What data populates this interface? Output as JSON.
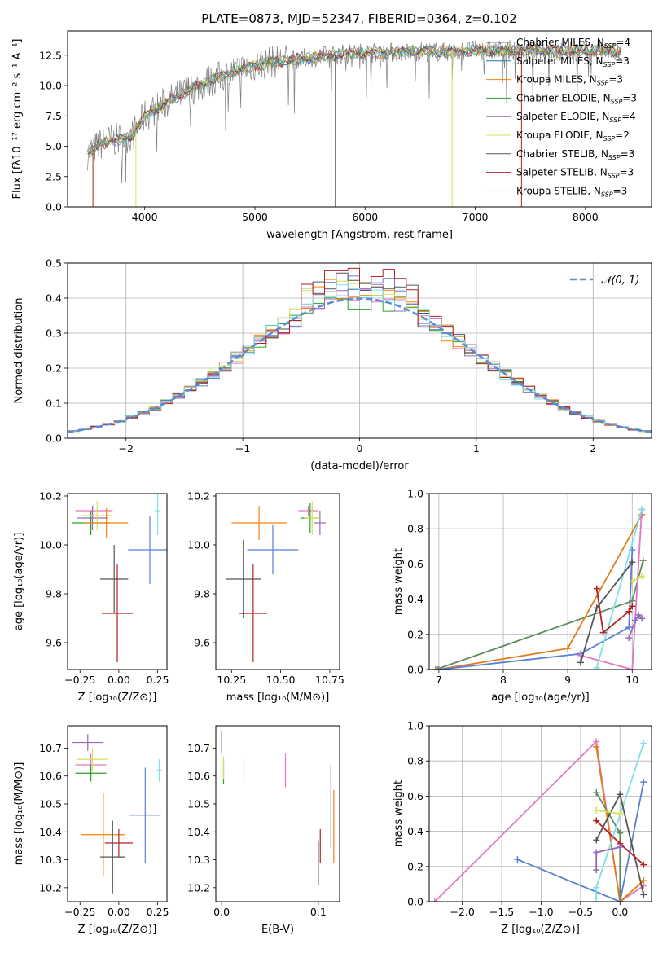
{
  "figure_title": "PLATE=0873, MJD=52347, FIBERID=0364, z=0.102",
  "model_colors": {
    "Chabrier MILES": "#7f7f7f",
    "Salpeter MILES": "#1f77b4",
    "Kroupa MILES": "#ff7f0e",
    "Chabrier ELODIE": "#2ca02c",
    "Salpeter ELODIE": "#9467bd",
    "Kroupa ELODIE": "#d4e157",
    "Chabrier STELIB": "#555555",
    "Salpeter STELIB": "#b22222",
    "Kroupa STELIB": "#7fdfe6",
    "pink": "#e377c2",
    "blue": "#5b7fd6",
    "green": "#5e8c5e",
    "orange": "#e07b1a"
  },
  "chart_data": [
    {
      "panel": "spectrum",
      "type": "line",
      "title": "PLATE=0873, MJD=52347, FIBERID=0364, z=0.102",
      "xlabel": "wavelength [Angstrom, rest frame]",
      "ylabel": "Flux [fλ10⁻¹⁷ erg cm⁻² s⁻¹ A⁻¹]",
      "xlim": [
        3300,
        8600
      ],
      "ylim": [
        0,
        14.5
      ],
      "xticks": [
        "4000",
        "5000",
        "6000",
        "7000",
        "8000"
      ],
      "yticks": [
        "0.0",
        "2.5",
        "5.0",
        "7.5",
        "10.0",
        "12.5"
      ],
      "legend_position": "upper right",
      "legend": [
        {
          "label": "Chabrier MILES, N",
          "sub": "SSP",
          "suffix": "=4",
          "color": "#7f7f7f"
        },
        {
          "label": "Salpeter MILES, N",
          "sub": "SSP",
          "suffix": "=3",
          "color": "#1f77b4"
        },
        {
          "label": "Kroupa MILES, N",
          "sub": "SSP",
          "suffix": "=3",
          "color": "#ff7f0e"
        },
        {
          "label": "Chabrier ELODIE, N",
          "sub": "SSP",
          "suffix": "=3",
          "color": "#2ca02c"
        },
        {
          "label": "Salpeter ELODIE, N",
          "sub": "SSP",
          "suffix": "=4",
          "color": "#9467bd"
        },
        {
          "label": "Kroupa ELODIE, N",
          "sub": "SSP",
          "suffix": "=2",
          "color": "#d4e157"
        },
        {
          "label": "Chabrier STELIB, N",
          "sub": "SSP",
          "suffix": "=3",
          "color": "#555555"
        },
        {
          "label": "Salpeter STELIB, N",
          "sub": "SSP",
          "suffix": "=3",
          "color": "#b22222"
        },
        {
          "label": "Kroupa STELIB, N",
          "sub": "SSP",
          "suffix": "=3",
          "color": "#7fdfe6"
        }
      ],
      "continuum": [
        [
          3480,
          4.4
        ],
        [
          3600,
          5.2
        ],
        [
          3700,
          5.5
        ],
        [
          3800,
          5.6
        ],
        [
          3900,
          6.0
        ],
        [
          4000,
          7.5
        ],
        [
          4200,
          8.6
        ],
        [
          4400,
          9.6
        ],
        [
          4600,
          10.4
        ],
        [
          4800,
          11.1
        ],
        [
          5000,
          11.7
        ],
        [
          5200,
          12.0
        ],
        [
          5400,
          12.2
        ],
        [
          5600,
          12.4
        ],
        [
          5800,
          12.6
        ],
        [
          6000,
          12.7
        ],
        [
          6200,
          12.7
        ],
        [
          6400,
          12.8
        ],
        [
          6600,
          12.8
        ],
        [
          6800,
          12.8
        ],
        [
          7000,
          12.9
        ],
        [
          7200,
          12.9
        ],
        [
          7400,
          12.9
        ],
        [
          7600,
          12.9
        ],
        [
          7800,
          12.8
        ],
        [
          8000,
          12.9
        ],
        [
          8200,
          12.8
        ],
        [
          8330,
          12.7
        ]
      ],
      "noise_amplitude": 1.4,
      "spike_lines": [
        {
          "x": 3530,
          "color": "#b22222"
        },
        {
          "x": 5730,
          "color": "#555555"
        },
        {
          "x": 6790,
          "color": "#d4e157"
        },
        {
          "x": 7420,
          "color": "#b22222"
        },
        {
          "x": 3920,
          "color": "#d4e157"
        }
      ]
    },
    {
      "panel": "residuals",
      "type": "histogram",
      "xlabel": "(data-model)/error",
      "ylabel": "Normed distribution",
      "xlim": [
        -2.5,
        2.5
      ],
      "ylim": [
        0,
        0.5
      ],
      "xticks": [
        "−2",
        "−1",
        "0",
        "1",
        "2"
      ],
      "yticks": [
        "0.0",
        "0.1",
        "0.2",
        "0.3",
        "0.4",
        "0.5"
      ],
      "grid": true,
      "legend_position": "upper right",
      "reference_curve": {
        "label": "𝒩(0, 1)",
        "color": "#5b8bd6",
        "style": "dashed"
      },
      "bin_width": 0.1,
      "series_colors": [
        "#5b7fd6",
        "#e377c2",
        "#2ca02c",
        "#ff7f0e",
        "#9467bd",
        "#d4e157",
        "#555555",
        "#b22222",
        "#7fdfe6"
      ],
      "series_tops": [
        0.46,
        0.42,
        0.41,
        0.45,
        0.43,
        0.46,
        0.47,
        0.48,
        0.43
      ]
    },
    {
      "panel": "age_vs_Z",
      "type": "errorbar",
      "xlabel": "Z [log₁₀(Z/Z⊙)]",
      "ylabel": "age  [log₁₀(age/yr)]",
      "xlim": [
        -0.33,
        0.31
      ],
      "ylim": [
        9.49,
        10.21
      ],
      "xticks": [
        "−0.25",
        "0.00",
        "0.25"
      ],
      "yticks": [
        "9.6",
        "9.8",
        "10.0",
        "10.2"
      ],
      "points": [
        {
          "x": -0.16,
          "y": 10.14,
          "xerr": 0.12,
          "yerr": 0.03,
          "color": "#e377c2"
        },
        {
          "x": -0.18,
          "y": 10.09,
          "xerr": 0.12,
          "yerr": 0.05,
          "color": "#2ca02c"
        },
        {
          "x": -0.17,
          "y": 10.11,
          "xerr": 0.1,
          "yerr": 0.05,
          "color": "#9467bd"
        },
        {
          "x": -0.14,
          "y": 10.12,
          "xerr": 0.1,
          "yerr": 0.06,
          "color": "#d4e157"
        },
        {
          "x": -0.08,
          "y": 10.09,
          "xerr": 0.14,
          "yerr": 0.06,
          "color": "#ff7f0e"
        },
        {
          "x": 0.2,
          "y": 9.98,
          "xerr": 0.14,
          "yerr": 0.14,
          "color": "#5b7fd6"
        },
        {
          "x": 0.25,
          "y": 10.14,
          "xerr": 0.02,
          "yerr": 0.1,
          "color": "#7fdfe6"
        },
        {
          "x": -0.03,
          "y": 9.86,
          "xerr": 0.09,
          "yerr": 0.14,
          "color": "#555555"
        },
        {
          "x": -0.01,
          "y": 9.72,
          "xerr": 0.1,
          "yerr": 0.2,
          "color": "#b22222"
        }
      ]
    },
    {
      "panel": "age_vs_mass",
      "type": "errorbar",
      "xlabel": "mass [log₁₀(M/M⊙)]",
      "xlim": [
        10.17,
        10.8
      ],
      "ylim": [
        9.49,
        10.21
      ],
      "xticks": [
        "10.25",
        "10.50",
        "10.75"
      ],
      "yticks": [
        "9.6",
        "9.8",
        "10.0",
        "10.2"
      ],
      "points": [
        {
          "x": 10.64,
          "y": 10.14,
          "xerr": 0.05,
          "yerr": 0.02,
          "color": "#e377c2"
        },
        {
          "x": 10.7,
          "y": 10.09,
          "xerr": 0.03,
          "yerr": 0.05,
          "color": "#9467bd"
        },
        {
          "x": 10.65,
          "y": 10.11,
          "xerr": 0.05,
          "yerr": 0.06,
          "color": "#2ca02c"
        },
        {
          "x": 10.66,
          "y": 10.11,
          "xerr": 0.04,
          "yerr": 0.07,
          "color": "#d4e157"
        },
        {
          "x": 10.39,
          "y": 10.09,
          "xerr": 0.14,
          "yerr": 0.07,
          "color": "#ff7f0e"
        },
        {
          "x": 10.46,
          "y": 9.98,
          "xerr": 0.13,
          "yerr": 0.1,
          "color": "#5b7fd6"
        },
        {
          "x": 10.31,
          "y": 9.86,
          "xerr": 0.09,
          "yerr": 0.16,
          "color": "#555555"
        },
        {
          "x": 10.36,
          "y": 9.72,
          "xerr": 0.07,
          "yerr": 0.2,
          "color": "#b22222"
        }
      ]
    },
    {
      "panel": "weight_vs_age",
      "type": "line",
      "xlabel": "age  [log₁₀(age/yr)]",
      "ylabel": "mass weight",
      "xlim": [
        6.85,
        10.3
      ],
      "ylim": [
        0,
        1
      ],
      "xticks": [
        "7",
        "8",
        "9",
        "10"
      ],
      "yticks": [
        "0.0",
        "0.2",
        "0.4",
        "0.6",
        "0.8",
        "1.0"
      ],
      "grid": true,
      "series": [
        {
          "color": "#5e8c5e",
          "points": [
            [
              6.95,
              0.0
            ],
            [
              10.0,
              0.39
            ],
            [
              10.17,
              0.62
            ]
          ]
        },
        {
          "color": "#e07b1a",
          "points": [
            [
              6.98,
              0.0
            ],
            [
              9.0,
              0.12
            ],
            [
              10.15,
              0.88
            ]
          ]
        },
        {
          "color": "#5b7fd6",
          "points": [
            [
              7.0,
              0.0
            ],
            [
              9.2,
              0.09
            ],
            [
              9.95,
              0.24
            ],
            [
              10.0,
              0.68
            ]
          ]
        },
        {
          "color": "#e377c2",
          "points": [
            [
              9.2,
              0.08
            ],
            [
              10.0,
              0.0
            ],
            [
              10.15,
              0.91
            ]
          ]
        },
        {
          "color": "#7fdfe6",
          "points": [
            [
              9.45,
              0.01
            ],
            [
              10.15,
              0.91
            ]
          ]
        },
        {
          "color": "#555555",
          "points": [
            [
              9.2,
              0.04
            ],
            [
              9.45,
              0.35
            ],
            [
              10.0,
              0.61
            ]
          ]
        },
        {
          "color": "#b22222",
          "points": [
            [
              9.45,
              0.46
            ],
            [
              9.55,
              0.21
            ],
            [
              9.95,
              0.33
            ],
            [
              10.0,
              0.36
            ]
          ]
        },
        {
          "color": "#9467bd",
          "points": [
            [
              9.95,
              0.18
            ],
            [
              10.05,
              0.28
            ],
            [
              10.1,
              0.31
            ],
            [
              10.15,
              0.29
            ]
          ]
        },
        {
          "color": "#d4e157",
          "points": [
            [
              10.0,
              0.5
            ],
            [
              10.15,
              0.53
            ]
          ]
        }
      ]
    },
    {
      "panel": "mass_vs_Z",
      "type": "errorbar",
      "xlabel": "Z [log₁₀(Z/Z⊙)]",
      "ylabel": "mass [log₁₀(M/M⊙)]",
      "xlim": [
        -0.33,
        0.31
      ],
      "ylim": [
        10.15,
        10.78
      ],
      "xticks": [
        "−0.25",
        "0.00",
        "0.25"
      ],
      "yticks": [
        "10.2",
        "10.3",
        "10.4",
        "10.5",
        "10.6",
        "10.7"
      ],
      "points": [
        {
          "x": -0.2,
          "y": 10.72,
          "xerr": 0.1,
          "yerr": 0.03,
          "color": "#9467bd"
        },
        {
          "x": -0.18,
          "y": 10.64,
          "xerr": 0.1,
          "yerr": 0.04,
          "color": "#e377c2"
        },
        {
          "x": -0.17,
          "y": 10.66,
          "xerr": 0.1,
          "yerr": 0.04,
          "color": "#d4e157"
        },
        {
          "x": -0.18,
          "y": 10.61,
          "xerr": 0.1,
          "yerr": 0.03,
          "color": "#2ca02c"
        },
        {
          "x": 0.26,
          "y": 10.62,
          "xerr": 0.02,
          "yerr": 0.04,
          "color": "#7fdfe6"
        },
        {
          "x": 0.17,
          "y": 10.46,
          "xerr": 0.1,
          "yerr": 0.17,
          "color": "#5b7fd6"
        },
        {
          "x": -0.1,
          "y": 10.39,
          "xerr": 0.14,
          "yerr": 0.15,
          "color": "#ff7f0e"
        },
        {
          "x": 0.0,
          "y": 10.36,
          "xerr": 0.09,
          "yerr": 0.05,
          "color": "#b22222"
        },
        {
          "x": -0.04,
          "y": 10.31,
          "xerr": 0.08,
          "yerr": 0.13,
          "color": "#555555"
        }
      ]
    },
    {
      "panel": "mass_vs_EBV",
      "type": "errorbar",
      "xlabel": "E(B-V)",
      "xlim": [
        -0.006,
        0.122
      ],
      "ylim": [
        10.15,
        10.78
      ],
      "xticks": [
        "0.0",
        "0.1"
      ],
      "yticks": [
        "10.2",
        "10.3",
        "10.4",
        "10.5",
        "10.6",
        "10.7"
      ],
      "points": [
        {
          "x": 0.0,
          "y": 10.72,
          "xerr": 0.0,
          "yerr": 0.04,
          "color": "#9467bd"
        },
        {
          "x": 0.002,
          "y": 10.61,
          "xerr": 0.0,
          "yerr": 0.04,
          "color": "#2ca02c"
        },
        {
          "x": 0.002,
          "y": 10.63,
          "xerr": 0.0,
          "yerr": 0.04,
          "color": "#d4e157"
        },
        {
          "x": 0.023,
          "y": 10.62,
          "xerr": 0.0,
          "yerr": 0.04,
          "color": "#7fdfe6"
        },
        {
          "x": 0.066,
          "y": 10.62,
          "xerr": 0.0,
          "yerr": 0.06,
          "color": "#e377c2"
        },
        {
          "x": 0.1,
          "y": 10.29,
          "xerr": 0.0,
          "yerr": 0.08,
          "color": "#555555"
        },
        {
          "x": 0.102,
          "y": 10.35,
          "xerr": 0.0,
          "yerr": 0.06,
          "color": "#b22222"
        },
        {
          "x": 0.113,
          "y": 10.49,
          "xerr": 0.0,
          "yerr": 0.15,
          "color": "#5b7fd6"
        },
        {
          "x": 0.116,
          "y": 10.42,
          "xerr": 0.0,
          "yerr": 0.13,
          "color": "#ff7f0e"
        }
      ]
    },
    {
      "panel": "weight_vs_Z",
      "type": "line",
      "xlabel": "Z [log₁₀(Z/Z⊙)]",
      "ylabel": "mass weight",
      "xlim": [
        -2.42,
        0.4
      ],
      "ylim": [
        0,
        1
      ],
      "xticks": [
        "−2.0",
        "−1.5",
        "−1.0",
        "−0.5",
        "0.0"
      ],
      "yticks": [
        "0.0",
        "0.2",
        "0.4",
        "0.6",
        "0.8",
        "1.0"
      ],
      "grid": true,
      "series": [
        {
          "color": "#e377c2",
          "points": [
            [
              -2.35,
              0.0
            ],
            [
              -0.3,
              0.91
            ],
            [
              0.0,
              0.0
            ],
            [
              0.3,
              0.09
            ]
          ]
        },
        {
          "color": "#5b7fd6",
          "points": [
            [
              -1.3,
              0.24
            ],
            [
              0.0,
              0.0
            ],
            [
              0.3,
              0.68
            ]
          ]
        },
        {
          "color": "#e07b1a",
          "points": [
            [
              -0.3,
              0.88
            ],
            [
              0.0,
              0.0
            ],
            [
              0.3,
              0.12
            ]
          ]
        },
        {
          "color": "#5e8c5e",
          "points": [
            [
              -0.3,
              0.62
            ],
            [
              0.0,
              0.39
            ],
            [
              0.0,
              0.0
            ]
          ]
        },
        {
          "color": "#7fdfe6",
          "points": [
            [
              -0.3,
              0.02
            ],
            [
              -0.3,
              0.08
            ],
            [
              0.3,
              0.9
            ]
          ]
        },
        {
          "color": "#555555",
          "points": [
            [
              -0.3,
              0.35
            ],
            [
              0.0,
              0.61
            ],
            [
              0.3,
              0.04
            ]
          ]
        },
        {
          "color": "#b22222",
          "points": [
            [
              -0.3,
              0.46
            ],
            [
              0.0,
              0.33
            ],
            [
              0.3,
              0.21
            ]
          ]
        },
        {
          "color": "#9467bd",
          "points": [
            [
              -0.3,
              0.18
            ],
            [
              -0.3,
              0.28
            ],
            [
              0.0,
              0.31
            ]
          ]
        },
        {
          "color": "#d4e157",
          "points": [
            [
              -0.3,
              0.52
            ],
            [
              0.0,
              0.5
            ]
          ]
        }
      ]
    }
  ]
}
